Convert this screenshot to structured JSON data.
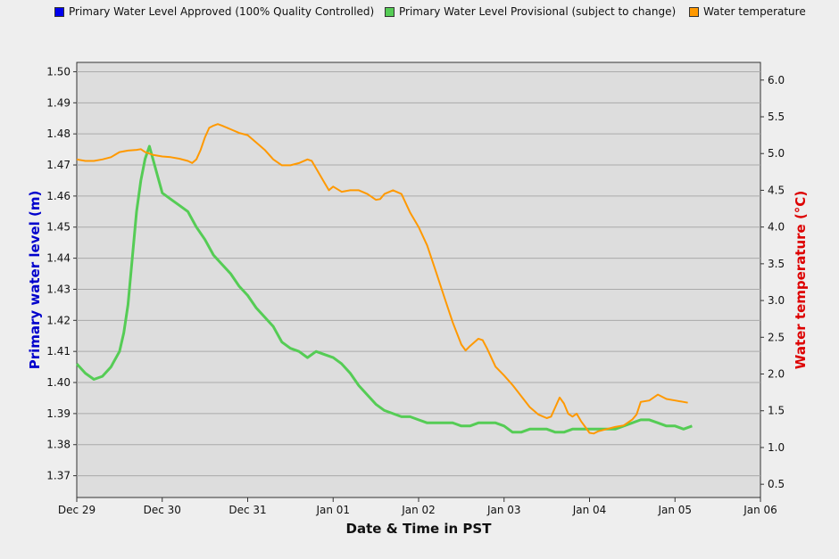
{
  "legend": [
    {
      "label": "Primary Water Level Approved (100% Quality Controlled)",
      "color": "#0000ee"
    },
    {
      "label": "Primary Water Level Provisional (subject to change)",
      "color": "#55cc55"
    },
    {
      "label": "Water temperature",
      "color": "#ff9900"
    }
  ],
  "chart_data": {
    "type": "line",
    "xlabel": "Date & Time in PST",
    "ylabel": "Primary water level (m)",
    "y2label": "Water temperature (°C)",
    "x_ticks": [
      "Dec 29",
      "Dec 30",
      "Dec 31",
      "Jan 01",
      "Jan 02",
      "Jan 03",
      "Jan 04",
      "Jan 05",
      "Jan 06"
    ],
    "xlim_days": [
      0,
      8
    ],
    "ylim": [
      1.363,
      1.503
    ],
    "y_ticks": [
      1.37,
      1.38,
      1.39,
      1.4,
      1.41,
      1.42,
      1.43,
      1.44,
      1.45,
      1.46,
      1.47,
      1.48,
      1.49,
      1.5
    ],
    "y2lim": [
      0.32,
      6.24
    ],
    "y2_ticks": [
      0.5,
      1.0,
      1.5,
      2.0,
      2.5,
      3.0,
      3.5,
      4.0,
      4.5,
      5.0,
      5.5,
      6.0
    ],
    "grid": true,
    "legend_position": "top",
    "series": [
      {
        "name": "Primary Water Level Provisional (subject to change)",
        "axis": "left",
        "color": "#55cc55",
        "points": [
          [
            0,
            1.406
          ],
          [
            0.1,
            1.403
          ],
          [
            0.2,
            1.401
          ],
          [
            0.3,
            1.402
          ],
          [
            0.4,
            1.405
          ],
          [
            0.5,
            1.41
          ],
          [
            0.55,
            1.416
          ],
          [
            0.6,
            1.425
          ],
          [
            0.65,
            1.44
          ],
          [
            0.7,
            1.455
          ],
          [
            0.75,
            1.465
          ],
          [
            0.8,
            1.472
          ],
          [
            0.85,
            1.476
          ],
          [
            0.9,
            1.471
          ],
          [
            0.95,
            1.466
          ],
          [
            1.0,
            1.461
          ],
          [
            1.1,
            1.459
          ],
          [
            1.2,
            1.457
          ],
          [
            1.3,
            1.455
          ],
          [
            1.4,
            1.45
          ],
          [
            1.5,
            1.446
          ],
          [
            1.6,
            1.441
          ],
          [
            1.7,
            1.438
          ],
          [
            1.8,
            1.435
          ],
          [
            1.9,
            1.431
          ],
          [
            2.0,
            1.428
          ],
          [
            2.1,
            1.424
          ],
          [
            2.2,
            1.421
          ],
          [
            2.3,
            1.418
          ],
          [
            2.4,
            1.413
          ],
          [
            2.5,
            1.411
          ],
          [
            2.6,
            1.41
          ],
          [
            2.7,
            1.408
          ],
          [
            2.8,
            1.41
          ],
          [
            2.9,
            1.409
          ],
          [
            3.0,
            1.408
          ],
          [
            3.1,
            1.406
          ],
          [
            3.2,
            1.403
          ],
          [
            3.3,
            1.399
          ],
          [
            3.4,
            1.396
          ],
          [
            3.5,
            1.393
          ],
          [
            3.6,
            1.391
          ],
          [
            3.7,
            1.39
          ],
          [
            3.8,
            1.389
          ],
          [
            3.9,
            1.389
          ],
          [
            4.0,
            1.388
          ],
          [
            4.1,
            1.387
          ],
          [
            4.2,
            1.387
          ],
          [
            4.3,
            1.387
          ],
          [
            4.4,
            1.387
          ],
          [
            4.5,
            1.386
          ],
          [
            4.6,
            1.386
          ],
          [
            4.7,
            1.387
          ],
          [
            4.8,
            1.387
          ],
          [
            4.9,
            1.387
          ],
          [
            5.0,
            1.386
          ],
          [
            5.1,
            1.384
          ],
          [
            5.2,
            1.384
          ],
          [
            5.3,
            1.385
          ],
          [
            5.4,
            1.385
          ],
          [
            5.5,
            1.385
          ],
          [
            5.6,
            1.384
          ],
          [
            5.7,
            1.384
          ],
          [
            5.8,
            1.385
          ],
          [
            5.9,
            1.385
          ],
          [
            6.0,
            1.385
          ],
          [
            6.1,
            1.385
          ],
          [
            6.2,
            1.385
          ],
          [
            6.3,
            1.385
          ],
          [
            6.4,
            1.386
          ],
          [
            6.5,
            1.387
          ],
          [
            6.6,
            1.388
          ],
          [
            6.7,
            1.388
          ],
          [
            6.8,
            1.387
          ],
          [
            6.9,
            1.386
          ],
          [
            7.0,
            1.386
          ],
          [
            7.1,
            1.385
          ],
          [
            7.2,
            1.386
          ]
        ]
      },
      {
        "name": "Water temperature",
        "axis": "right",
        "color": "#ff9900",
        "points": [
          [
            0,
            4.92
          ],
          [
            0.1,
            4.9
          ],
          [
            0.2,
            4.9
          ],
          [
            0.3,
            4.92
          ],
          [
            0.4,
            4.95
          ],
          [
            0.5,
            5.02
          ],
          [
            0.6,
            5.04
          ],
          [
            0.7,
            5.05
          ],
          [
            0.75,
            5.06
          ],
          [
            0.8,
            5.02
          ],
          [
            0.9,
            4.98
          ],
          [
            1.0,
            4.96
          ],
          [
            1.1,
            4.95
          ],
          [
            1.2,
            4.93
          ],
          [
            1.3,
            4.9
          ],
          [
            1.35,
            4.87
          ],
          [
            1.4,
            4.92
          ],
          [
            1.45,
            5.05
          ],
          [
            1.5,
            5.22
          ],
          [
            1.55,
            5.35
          ],
          [
            1.6,
            5.38
          ],
          [
            1.65,
            5.4
          ],
          [
            1.7,
            5.38
          ],
          [
            1.8,
            5.33
          ],
          [
            1.9,
            5.28
          ],
          [
            2.0,
            5.25
          ],
          [
            2.1,
            5.15
          ],
          [
            2.2,
            5.05
          ],
          [
            2.3,
            4.92
          ],
          [
            2.4,
            4.84
          ],
          [
            2.5,
            4.84
          ],
          [
            2.6,
            4.87
          ],
          [
            2.7,
            4.92
          ],
          [
            2.75,
            4.9
          ],
          [
            2.8,
            4.8
          ],
          [
            2.9,
            4.6
          ],
          [
            2.95,
            4.5
          ],
          [
            3.0,
            4.55
          ],
          [
            3.1,
            4.48
          ],
          [
            3.2,
            4.5
          ],
          [
            3.3,
            4.5
          ],
          [
            3.4,
            4.45
          ],
          [
            3.5,
            4.37
          ],
          [
            3.55,
            4.38
          ],
          [
            3.6,
            4.45
          ],
          [
            3.7,
            4.5
          ],
          [
            3.8,
            4.45
          ],
          [
            3.9,
            4.2
          ],
          [
            4.0,
            4.0
          ],
          [
            4.1,
            3.75
          ],
          [
            4.2,
            3.4
          ],
          [
            4.3,
            3.05
          ],
          [
            4.4,
            2.7
          ],
          [
            4.5,
            2.4
          ],
          [
            4.55,
            2.32
          ],
          [
            4.6,
            2.38
          ],
          [
            4.7,
            2.48
          ],
          [
            4.75,
            2.46
          ],
          [
            4.8,
            2.35
          ],
          [
            4.9,
            2.1
          ],
          [
            5.0,
            1.98
          ],
          [
            5.1,
            1.85
          ],
          [
            5.2,
            1.7
          ],
          [
            5.3,
            1.55
          ],
          [
            5.4,
            1.45
          ],
          [
            5.5,
            1.4
          ],
          [
            5.55,
            1.42
          ],
          [
            5.6,
            1.55
          ],
          [
            5.65,
            1.68
          ],
          [
            5.7,
            1.6
          ],
          [
            5.75,
            1.46
          ],
          [
            5.8,
            1.42
          ],
          [
            5.85,
            1.46
          ],
          [
            5.9,
            1.36
          ],
          [
            6.0,
            1.2
          ],
          [
            6.05,
            1.19
          ],
          [
            6.1,
            1.22
          ],
          [
            6.2,
            1.25
          ],
          [
            6.3,
            1.28
          ],
          [
            6.4,
            1.3
          ],
          [
            6.5,
            1.38
          ],
          [
            6.55,
            1.45
          ],
          [
            6.6,
            1.62
          ],
          [
            6.7,
            1.64
          ],
          [
            6.8,
            1.72
          ],
          [
            6.9,
            1.66
          ],
          [
            7.0,
            1.64
          ],
          [
            7.1,
            1.62
          ],
          [
            7.15,
            1.61
          ]
        ]
      }
    ]
  }
}
